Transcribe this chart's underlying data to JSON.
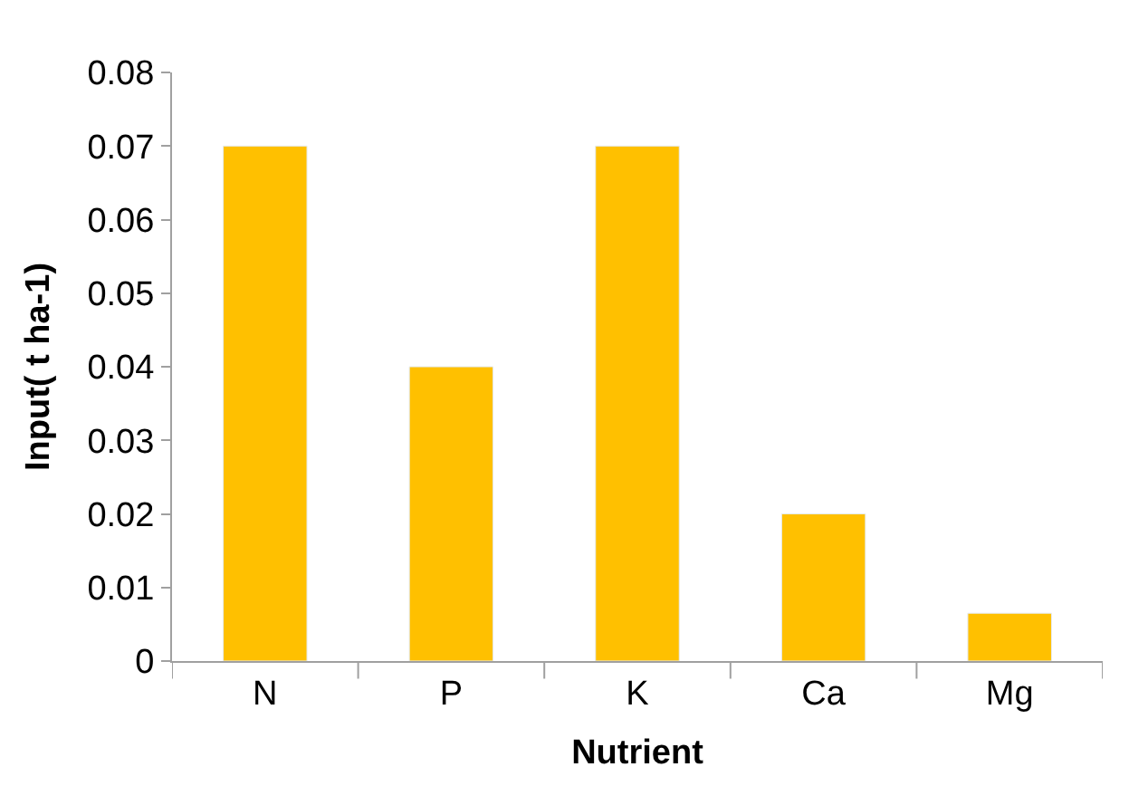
{
  "chart_data": {
    "type": "bar",
    "xlabel": "Nutrient",
    "ylabel": "Input( t ha-1)",
    "categories": [
      "N",
      "P",
      "K",
      "Ca",
      "Mg"
    ],
    "values": [
      0.07,
      0.04,
      0.07,
      0.02,
      0.0065
    ],
    "color": "#ffc000",
    "ylim": [
      0,
      0.08
    ],
    "yticks": [
      {
        "value": 0,
        "label": "0"
      },
      0.01,
      0.02,
      0.03,
      0.04,
      0.05,
      0.06,
      0.07,
      0.08
    ],
    "grid": false
  }
}
